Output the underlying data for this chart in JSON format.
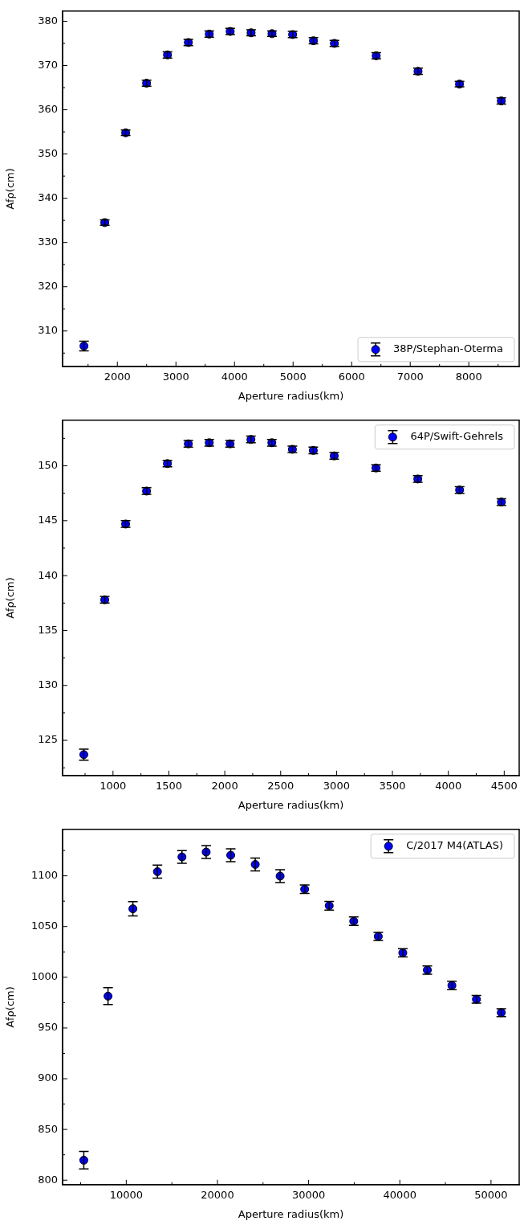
{
  "chart_data": [
    {
      "type": "scatter",
      "xlabel": "Aperture radius(km)",
      "ylabel": "Afρ(cm)",
      "xlim": [
        1065,
        8860
      ],
      "ylim": [
        302,
        382.3
      ],
      "marker": "circle",
      "legend": "bottom right",
      "grid": false,
      "xticks": [
        {
          "value": 1500,
          "label": null
        },
        2000,
        {
          "value": 2500,
          "label": null
        },
        3000,
        {
          "value": 3500,
          "label": null
        },
        4000,
        {
          "value": 4500,
          "label": null
        },
        5000,
        {
          "value": 5500,
          "label": null
        },
        6000,
        {
          "value": 6500,
          "label": null
        },
        7000,
        {
          "value": 7500,
          "label": null
        },
        8000,
        {
          "value": 8500,
          "label": null
        }
      ],
      "yticks": [
        {
          "value": 305,
          "label": null
        },
        310,
        {
          "value": 315,
          "label": null
        },
        320,
        {
          "value": 325,
          "label": null
        },
        330,
        {
          "value": 335,
          "label": null
        },
        340,
        {
          "value": 345,
          "label": null
        },
        350,
        {
          "value": 355,
          "label": null
        },
        360,
        {
          "value": 365,
          "label": null
        },
        370,
        {
          "value": 375,
          "label": null
        },
        380
      ],
      "x": [
        1430,
        1785,
        2142,
        2499,
        2856,
        3212,
        3569,
        3926,
        4283,
        4640,
        4992,
        5348,
        5705,
        6419,
        7133,
        7841,
        8555
      ],
      "series": [
        {
          "name": "38P/Stephan-Oterma",
          "color": "#0000ff",
          "values": [
            306.6,
            334.5,
            354.8,
            366.0,
            372.4,
            375.2,
            377.1,
            377.7,
            377.4,
            377.2,
            377.0,
            375.6,
            375.0,
            372.2,
            368.7,
            365.8,
            362.0
          ],
          "errors": [
            1.1,
            0.6,
            0.6,
            0.7,
            0.7,
            0.7,
            0.7,
            0.7,
            0.7,
            0.6,
            0.7,
            0.7,
            0.7,
            0.7,
            0.7,
            0.6,
            0.7
          ]
        }
      ]
    },
    {
      "type": "scatter",
      "xlabel": "Aperture radius(km)",
      "ylabel": "Afρ(cm)",
      "xlim": [
        549,
        4634
      ],
      "ylim": [
        121.8,
        154.15
      ],
      "marker": "circle",
      "legend": "top right",
      "grid": false,
      "xticks": [
        {
          "value": 750,
          "label": null
        },
        1000,
        {
          "value": 1250,
          "label": null
        },
        1500,
        {
          "value": 1750,
          "label": null
        },
        2000,
        {
          "value": 2250,
          "label": null
        },
        2500,
        {
          "value": 2750,
          "label": null
        },
        3000,
        {
          "value": 3250,
          "label": null
        },
        3500,
        {
          "value": 3750,
          "label": null
        },
        4000,
        {
          "value": 4250,
          "label": null
        },
        4500
      ],
      "yticks": [
        {
          "value": 122.5,
          "label": null
        },
        125,
        {
          "value": 127.5,
          "label": null
        },
        130,
        {
          "value": 132.5,
          "label": null
        },
        135,
        {
          "value": 137.5,
          "label": null
        },
        140,
        {
          "value": 142.5,
          "label": null
        },
        145,
        {
          "value": 147.5,
          "label": null
        },
        150,
        {
          "value": 152.5,
          "label": null
        }
      ],
      "x": [
        739,
        926,
        1113,
        1300,
        1487,
        1674,
        1861,
        2047,
        2234,
        2421,
        2605,
        2792,
        2979,
        3353,
        3727,
        4101,
        4475
      ],
      "series": [
        {
          "name": "64P/Swift-Gehrels",
          "color": "#0000ff",
          "values": [
            123.7,
            137.8,
            144.7,
            147.7,
            150.2,
            152.0,
            152.1,
            152.0,
            152.4,
            152.1,
            151.5,
            151.4,
            150.9,
            149.8,
            148.8,
            147.8,
            146.7
          ],
          "errors": [
            0.5,
            0.3,
            0.3,
            0.3,
            0.3,
            0.3,
            0.3,
            0.3,
            0.3,
            0.3,
            0.3,
            0.3,
            0.3,
            0.3,
            0.3,
            0.3,
            0.3
          ]
        }
      ]
    },
    {
      "type": "scatter",
      "xlabel": "Aperture radius(km)",
      "ylabel": "Afρ(cm)",
      "xlim": [
        3018,
        53090
      ],
      "ylim": [
        795.6,
        1145.8
      ],
      "marker": "circle",
      "legend": "top right",
      "grid": false,
      "xticks": [
        {
          "value": 5000,
          "label": null
        },
        10000,
        {
          "value": 15000,
          "label": null
        },
        20000,
        {
          "value": 25000,
          "label": null
        },
        30000,
        {
          "value": 35000,
          "label": null
        },
        40000,
        {
          "value": 45000,
          "label": null
        },
        50000
      ],
      "yticks": [
        800,
        {
          "value": 825,
          "label": null
        },
        850,
        {
          "value": 875,
          "label": null
        },
        900,
        {
          "value": 925,
          "label": null
        },
        950,
        {
          "value": 975,
          "label": null
        },
        1000,
        {
          "value": 1025,
          "label": null
        },
        1050,
        {
          "value": 1075,
          "label": null
        },
        1100,
        {
          "value": 1125,
          "label": null
        }
      ],
      "x": [
        5345,
        8000,
        10727,
        13418,
        16109,
        18764,
        21455,
        24145,
        26873,
        29564,
        32255,
        34945,
        37636,
        40327,
        43018,
        45709,
        48400,
        51127
      ],
      "series": [
        {
          "name": "C/2017 M4(ATLAS)",
          "color": "#0000ff",
          "values": [
            819.7,
            981.4,
            1067.5,
            1104.1,
            1118.6,
            1123.4,
            1120.3,
            1111.2,
            1099.7,
            1086.8,
            1070.5,
            1055.3,
            1040.3,
            1024.1,
            1007.1,
            991.9,
            978.3,
            965.1
          ],
          "errors": [
            8.6,
            8.3,
            7,
            6.4,
            6.3,
            6.3,
            6.3,
            6.3,
            6.3,
            4.2,
            4.2,
            4.2,
            4,
            4,
            4,
            4.2,
            3.7,
            3.9
          ]
        }
      ]
    }
  ]
}
